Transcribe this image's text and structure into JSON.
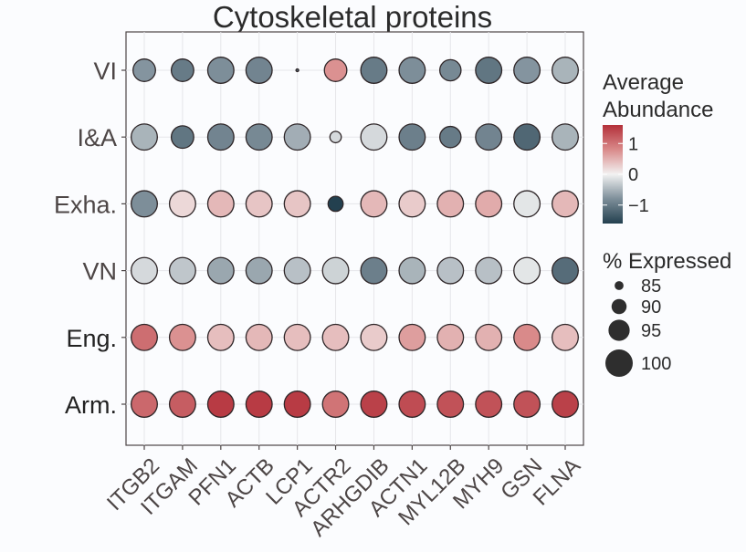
{
  "chart_data": {
    "type": "scatter",
    "subtype": "dot-plot",
    "title": "Cytoskeletal proteins",
    "xlabel": "",
    "ylabel": "",
    "grid": true,
    "x_categories": [
      "ITGB2",
      "ITGAM",
      "PFN1",
      "ACTB",
      "LCP1",
      "ACTR2",
      "ARHGDIB",
      "ACTN1",
      "MYL12B",
      "MYH9",
      "GSN",
      "FLNA"
    ],
    "y_categories": [
      "VI",
      "I&A",
      "Exha.",
      "VN",
      "Eng.",
      "Arm."
    ],
    "color_legend": {
      "title_line1": "Average",
      "title_line2": "Abundance",
      "ticks": [
        1,
        0,
        -1
      ],
      "tick_labels": [
        "1",
        "0",
        "−1"
      ],
      "range": [
        -1.6,
        1.6
      ],
      "low_color": "#23404f",
      "mid_color": "#f2f2f2",
      "high_color": "#b3303a"
    },
    "size_legend": {
      "title": "% Expressed",
      "breaks": [
        85,
        90,
        95,
        100
      ],
      "labels": [
        "85",
        "90",
        "95",
        "100"
      ],
      "range": [
        80,
        100
      ]
    },
    "series": [
      {
        "name": "VI",
        "abundance": [
          -0.75,
          -1.0,
          -0.8,
          -0.9,
          -1.2,
          0.75,
          -1.0,
          -0.8,
          -0.85,
          -1.05,
          -0.75,
          -0.5
        ],
        "pct_expressed": [
          96,
          96,
          99,
          99,
          80,
          96,
          99,
          99,
          95,
          99,
          99,
          99
        ]
      },
      {
        "name": "I&A",
        "abundance": [
          -0.5,
          -1.05,
          -0.9,
          -0.85,
          -0.55,
          -0.2,
          -0.2,
          -0.95,
          -1.0,
          -0.9,
          -1.2,
          -0.5
        ],
        "pct_expressed": [
          99,
          96,
          99,
          99,
          99,
          87,
          99,
          99,
          95,
          99,
          99,
          99
        ]
      },
      {
        "name": "Exha.",
        "abundance": [
          -0.8,
          0.2,
          0.45,
          0.35,
          0.35,
          -1.6,
          0.45,
          0.3,
          0.5,
          0.55,
          -0.1,
          0.45
        ],
        "pct_expressed": [
          99,
          99,
          99,
          99,
          99,
          90,
          99,
          99,
          99,
          99,
          99,
          99
        ]
      },
      {
        "name": "VN",
        "abundance": [
          -0.2,
          -0.35,
          -0.6,
          -0.6,
          -0.4,
          -0.25,
          -0.95,
          -0.5,
          -0.4,
          -0.4,
          -0.1,
          -1.15
        ],
        "pct_expressed": [
          99,
          99,
          99,
          99,
          99,
          99,
          99,
          99,
          99,
          99,
          99,
          99
        ]
      },
      {
        "name": "Eng.",
        "abundance": [
          1.05,
          0.75,
          0.4,
          0.45,
          0.4,
          0.4,
          0.3,
          0.65,
          0.5,
          0.5,
          0.8,
          0.4
        ],
        "pct_expressed": [
          99,
          99,
          99,
          99,
          99,
          99,
          99,
          99,
          99,
          99,
          99,
          99
        ]
      },
      {
        "name": "Arm.",
        "abundance": [
          1.1,
          1.2,
          1.5,
          1.5,
          1.5,
          1.0,
          1.45,
          1.35,
          1.3,
          1.3,
          1.3,
          1.45
        ],
        "pct_expressed": [
          99,
          99,
          99,
          99,
          99,
          99,
          99,
          99,
          99,
          99,
          99,
          99
        ]
      }
    ]
  }
}
